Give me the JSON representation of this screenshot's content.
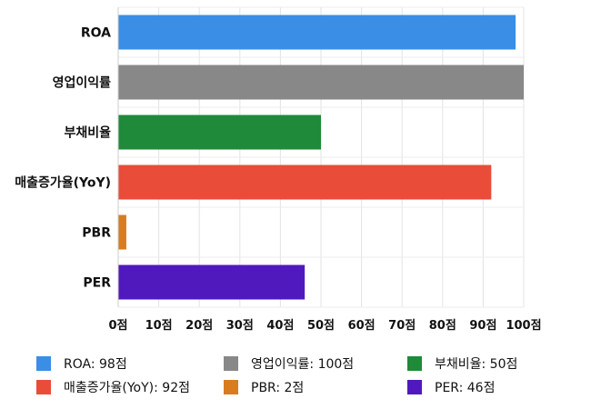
{
  "chart_data": {
    "type": "bar",
    "orientation": "horizontal",
    "categories": [
      "ROA",
      "영업이익률",
      "부채비율",
      "매출증가율(YoY)",
      "PBR",
      "PER"
    ],
    "values": [
      98,
      100,
      50,
      92,
      2,
      46
    ],
    "colors": [
      "#3a8ee6",
      "#888888",
      "#1f8a3a",
      "#ea4c3a",
      "#d97b1f",
      "#4f19bd"
    ],
    "xlim": [
      0,
      100
    ],
    "x_ticks": [
      0,
      10,
      20,
      30,
      40,
      50,
      60,
      70,
      80,
      90,
      100
    ],
    "tick_unit": "점",
    "grid": true,
    "legend_position": "bottom",
    "legend": [
      "ROA: 98점",
      "영업이익률: 100점",
      "부채비율: 50점",
      "매출증가율(YoY): 92점",
      "PBR: 2점",
      "PER: 46점"
    ]
  }
}
